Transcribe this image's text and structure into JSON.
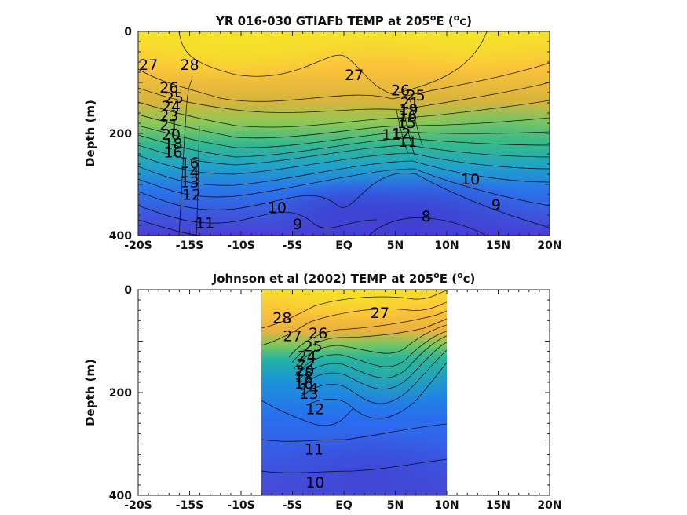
{
  "chart_data": [
    {
      "type": "heatmap",
      "title_main": "YR 016-030 GTIAFb TEMP at 205",
      "title_sup": "o",
      "title_end": "E (",
      "unit_sup": "o",
      "unit_end": "c)",
      "ylabel": "Depth (m)",
      "xlim": [
        -20,
        20
      ],
      "ylim": [
        0,
        400
      ],
      "data_xlim": [
        -20,
        20
      ],
      "x_ticks": [
        -20,
        -15,
        -10,
        -5,
        0,
        5,
        10,
        15,
        20
      ],
      "x_tick_labels": [
        "-20S",
        "-15S",
        "-10S",
        "-5S",
        "EQ",
        "5N",
        "10N",
        "15N",
        "20N"
      ],
      "y_ticks": [
        0,
        200,
        400
      ],
      "y_tick_labels": [
        "0",
        "200",
        "400"
      ],
      "contour_labels": [
        {
          "text": "28",
          "lat": -15,
          "depth": 75
        },
        {
          "text": "27",
          "lat": -19,
          "depth": 75
        },
        {
          "text": "27",
          "lat": 1,
          "depth": 95
        },
        {
          "text": "26",
          "lat": -17,
          "depth": 120
        },
        {
          "text": "25",
          "lat": -16.5,
          "depth": 140
        },
        {
          "text": "24",
          "lat": -16.8,
          "depth": 157
        },
        {
          "text": "23",
          "lat": -17,
          "depth": 175
        },
        {
          "text": "21",
          "lat": -17,
          "depth": 193
        },
        {
          "text": "20",
          "lat": -16.8,
          "depth": 212
        },
        {
          "text": "18",
          "lat": -16.6,
          "depth": 230
        },
        {
          "text": "16",
          "lat": -16.6,
          "depth": 247
        },
        {
          "text": "16",
          "lat": -15,
          "depth": 268
        },
        {
          "text": "14",
          "lat": -15,
          "depth": 286
        },
        {
          "text": "13",
          "lat": -15,
          "depth": 305
        },
        {
          "text": "12",
          "lat": -14.8,
          "depth": 330
        },
        {
          "text": "11",
          "lat": -13.5,
          "depth": 385
        },
        {
          "text": "10",
          "lat": -6.5,
          "depth": 355
        },
        {
          "text": "9",
          "lat": -4.5,
          "depth": 388
        },
        {
          "text": "26",
          "lat": 5.5,
          "depth": 125
        },
        {
          "text": "25",
          "lat": 7,
          "depth": 135
        },
        {
          "text": "21",
          "lat": 6.4,
          "depth": 150
        },
        {
          "text": "19",
          "lat": 6.3,
          "depth": 163
        },
        {
          "text": "16",
          "lat": 6.2,
          "depth": 176
        },
        {
          "text": "15",
          "lat": 6.1,
          "depth": 189
        },
        {
          "text": "12",
          "lat": 5.6,
          "depth": 210
        },
        {
          "text": "11",
          "lat": 4.6,
          "depth": 212
        },
        {
          "text": "11",
          "lat": 6.2,
          "depth": 226
        },
        {
          "text": "10",
          "lat": 12.3,
          "depth": 300
        },
        {
          "text": "9",
          "lat": 14.8,
          "depth": 350
        },
        {
          "text": "8",
          "lat": 8,
          "depth": 372
        }
      ]
    },
    {
      "type": "heatmap",
      "title_main": "Johnson et al (2002) TEMP at 205",
      "title_sup": "o",
      "title_end": "E (",
      "unit_sup": "o",
      "unit_end": "c)",
      "ylabel": "Depth (m)",
      "xlim": [
        -20,
        20
      ],
      "ylim": [
        0,
        400
      ],
      "data_xlim": [
        -8,
        10
      ],
      "x_ticks": [
        -20,
        -15,
        -10,
        -5,
        0,
        5,
        10,
        15,
        20
      ],
      "x_tick_labels": [
        "-20S",
        "-15S",
        "-10S",
        "-5S",
        "EQ",
        "5N",
        "10N",
        "15N",
        "20N"
      ],
      "y_ticks": [
        0,
        200,
        400
      ],
      "y_tick_labels": [
        "0",
        "200",
        "400"
      ],
      "contour_labels": [
        {
          "text": "28",
          "lat": -6,
          "depth": 65
        },
        {
          "text": "27",
          "lat": -5,
          "depth": 100
        },
        {
          "text": "27",
          "lat": 3.5,
          "depth": 55
        },
        {
          "text": "26",
          "lat": -2.5,
          "depth": 95
        },
        {
          "text": "25",
          "lat": -3,
          "depth": 120
        },
        {
          "text": "24",
          "lat": -3.6,
          "depth": 140
        },
        {
          "text": "22",
          "lat": -3.7,
          "depth": 155
        },
        {
          "text": "20",
          "lat": -3.8,
          "depth": 168
        },
        {
          "text": "18",
          "lat": -3.9,
          "depth": 180
        },
        {
          "text": "16",
          "lat": -3.9,
          "depth": 192
        },
        {
          "text": "14",
          "lat": -3.4,
          "depth": 202
        },
        {
          "text": "13",
          "lat": -3.4,
          "depth": 212
        },
        {
          "text": "12",
          "lat": -2.8,
          "depth": 242
        },
        {
          "text": "11",
          "lat": -2.9,
          "depth": 320
        },
        {
          "text": "10",
          "lat": -2.8,
          "depth": 385
        }
      ]
    }
  ]
}
